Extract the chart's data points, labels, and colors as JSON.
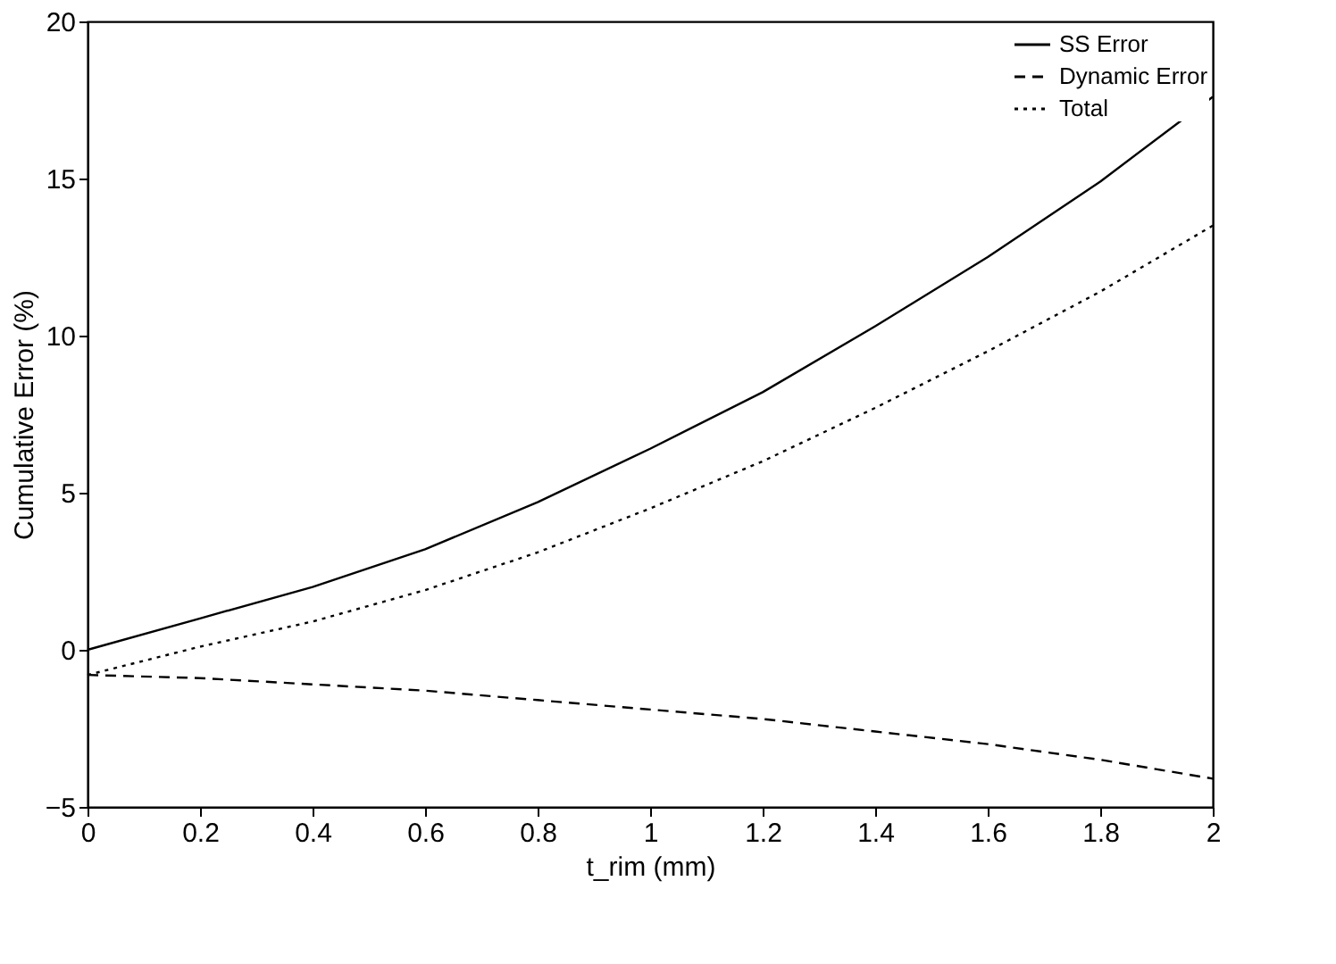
{
  "chart_data": {
    "type": "line",
    "xlabel": "t_rim (mm)",
    "ylabel": "Cumulative Error (%)",
    "x": [
      0,
      0.2,
      0.4,
      0.6,
      0.8,
      1.0,
      1.2,
      1.4,
      1.6,
      1.8,
      2.0
    ],
    "series": [
      {
        "name": "SS Error",
        "color": "#000000",
        "line_style": "solid",
        "values": [
          0,
          1.0,
          2.0,
          3.2,
          4.7,
          6.4,
          8.2,
          10.3,
          12.5,
          14.9,
          17.6
        ]
      },
      {
        "name": "Dynamic Error",
        "color": "#000000",
        "line_style": "dashed",
        "values": [
          -0.8,
          -0.9,
          -1.1,
          -1.3,
          -1.6,
          -1.9,
          -2.2,
          -2.6,
          -3.0,
          -3.5,
          -4.1
        ]
      },
      {
        "name": "Total",
        "color": "#000000",
        "line_style": "dotted",
        "values": [
          -0.8,
          0.1,
          0.9,
          1.9,
          3.1,
          4.5,
          6.0,
          7.7,
          9.5,
          11.4,
          13.5
        ]
      }
    ],
    "xlim": [
      0,
      2
    ],
    "xticks": [
      0,
      0.2,
      0.4,
      0.6,
      0.8,
      1,
      1.2,
      1.4,
      1.6,
      1.8,
      2
    ],
    "ylim": [
      -5,
      20
    ],
    "yticks": [
      -5,
      0,
      5,
      10,
      15,
      20
    ],
    "grid": false,
    "legend": "top right",
    "marker": "none"
  }
}
